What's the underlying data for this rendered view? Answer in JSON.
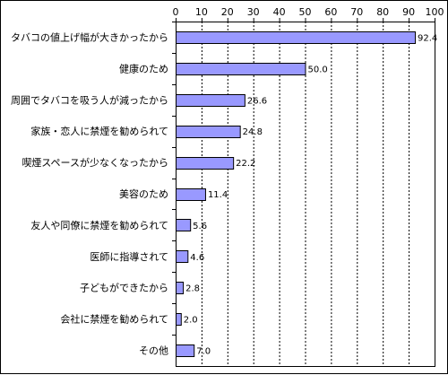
{
  "chart_data": {
    "type": "bar",
    "orientation": "horizontal",
    "categories": [
      "タバコの値上げ幅が大きかったから",
      "健康のため",
      "周囲でタバコを吸う人が減ったから",
      "家族・恋人に禁煙を勧められて",
      "喫煙スペースが少なくなったから",
      "美容のため",
      "友人や同僚に禁煙を勧められて",
      "医師に指導されて",
      "子どもができたから",
      "会社に禁煙を勧められて",
      "その他"
    ],
    "values": [
      92.4,
      50.0,
      26.6,
      24.8,
      22.2,
      11.4,
      5.6,
      4.6,
      2.8,
      2.0,
      7.0
    ],
    "value_labels": [
      "92.4",
      "50.0",
      "26.6",
      "24.8",
      "22.2",
      "11.4",
      "5.6",
      "4.6",
      "2.8",
      "2.0",
      "7.0"
    ],
    "xlim": [
      0,
      100
    ],
    "xticks": [
      "0",
      "10",
      "20",
      "30",
      "40",
      "50",
      "60",
      "70",
      "80",
      "90",
      "100"
    ],
    "axis_position": "top",
    "grid": true,
    "bar_color": "#9999ff",
    "bar_edge_color": "#000000",
    "title": "",
    "xlabel": "",
    "ylabel": ""
  }
}
